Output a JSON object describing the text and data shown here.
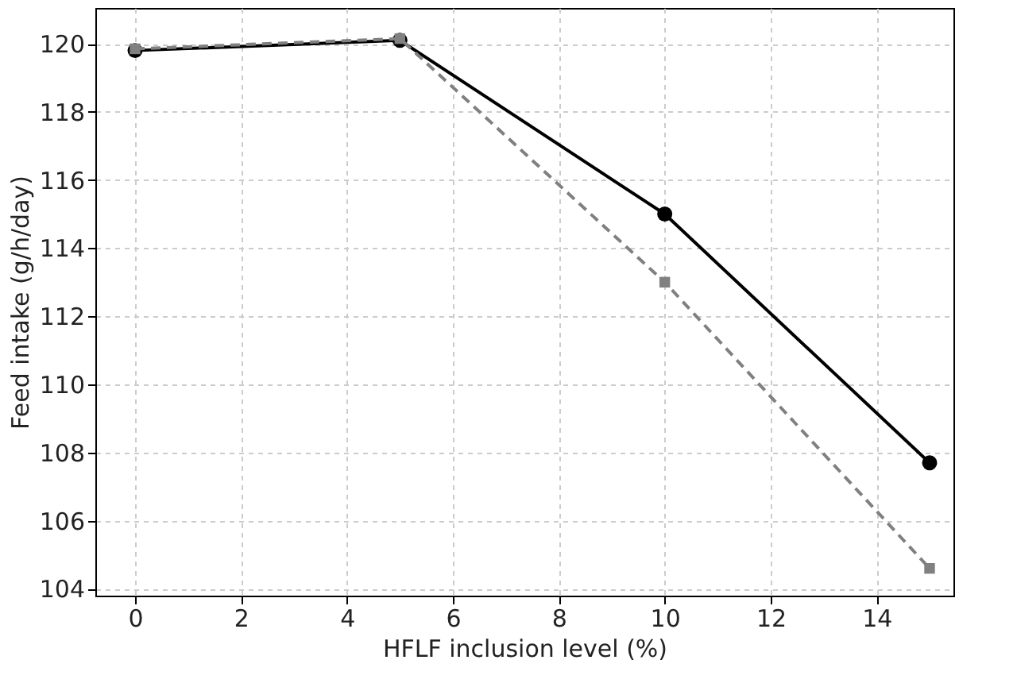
{
  "chart_data": {
    "type": "line",
    "xlabel": "HFLF inclusion level (%)",
    "ylabel": "Feed intake (g/h/day)",
    "x": [
      0,
      5,
      10,
      15
    ],
    "series": [
      {
        "color": "#000000",
        "values": [
          119.8,
          120.1,
          115.0,
          107.7
        ],
        "marker": "circle",
        "line_style": "solid"
      },
      {
        "color": "#808080",
        "values": [
          119.85,
          120.15,
          113.0,
          104.6
        ],
        "marker": "square",
        "line_style": "dashed"
      }
    ],
    "xlim": [
      -0.75,
      15.45
    ],
    "xticks": [
      0,
      2,
      4,
      6,
      8,
      10,
      12,
      14
    ],
    "ylim": [
      103.8,
      121.05
    ],
    "yticks": [
      104,
      106,
      108,
      110,
      112,
      114,
      116,
      118,
      120
    ],
    "grid": true
  }
}
